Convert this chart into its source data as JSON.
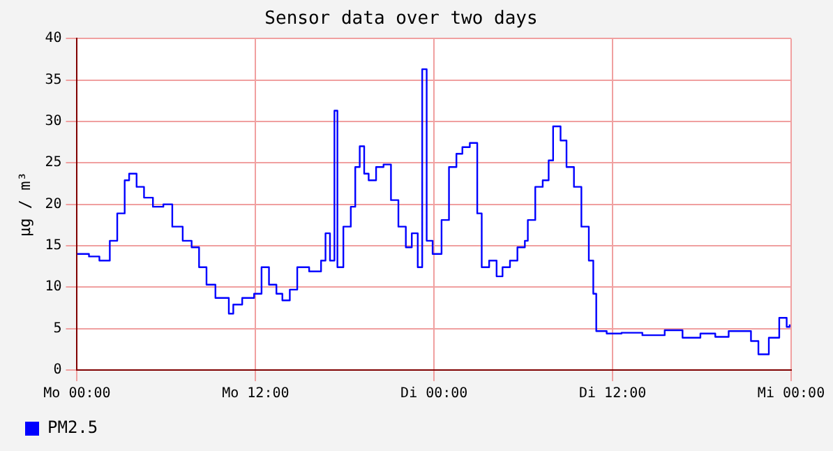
{
  "chart_data": {
    "type": "step",
    "title": "Sensor data over two days",
    "ylabel": "µg / m³",
    "xlim": [
      "--01-01T00:00",
      "--01-03T00:00"
    ],
    "xticks": [
      {
        "value": "--01-01T00:00",
        "label": "Mo 00:00"
      },
      {
        "value": "--01-01T12:00",
        "label": "Mo 12:00"
      },
      {
        "value": "--01-02T00:00",
        "label": "Di 00:00"
      },
      {
        "value": "--01-02T12:00",
        "label": "Di 12:00"
      },
      {
        "value": "--01-03T00:00",
        "label": "Mi 00:00"
      }
    ],
    "ylim": [
      0,
      40
    ],
    "yticks": [
      0,
      5,
      10,
      15,
      20,
      25,
      30,
      35,
      40
    ],
    "grid": true,
    "legend": "bottom left",
    "marker": "none",
    "line_style": "solid",
    "series": [
      {
        "name": "PM2.5",
        "color": "#0000ff",
        "x": [
          "--01-01T00:00",
          "--01-01T00:48",
          "--01-01T01:30",
          "--01-01T02:12",
          "--01-01T02:42",
          "--01-01T03:12",
          "--01-01T03:30",
          "--01-01T04:00",
          "--01-01T04:30",
          "--01-01T05:06",
          "--01-01T05:48",
          "--01-01T06:24",
          "--01-01T07:06",
          "--01-01T07:42",
          "--01-01T08:12",
          "--01-01T08:42",
          "--01-01T09:18",
          "--01-01T10:12",
          "--01-01T10:30",
          "--01-01T11:06",
          "--01-01T11:54",
          "--01-01T12:24",
          "--01-01T12:54",
          "--01-01T13:24",
          "--01-01T13:48",
          "--01-01T14:18",
          "--01-01T14:48",
          "--01-01T15:36",
          "--01-01T16:24",
          "--01-01T16:42",
          "--01-01T17:00",
          "--01-01T17:18",
          "--01-01T17:30",
          "--01-01T17:54",
          "--01-01T18:24",
          "--01-01T18:42",
          "--01-01T19:00",
          "--01-01T19:18",
          "--01-01T19:36",
          "--01-01T20:06",
          "--01-01T20:36",
          "--01-01T21:06",
          "--01-01T21:36",
          "--01-01T22:06",
          "--01-01T22:30",
          "--01-01T22:54",
          "--01-01T23:12",
          "--01-01T23:30",
          "--01-01T23:54",
          "--01-02T00:30",
          "--01-02T01:00",
          "--01-02T01:30",
          "--01-02T01:54",
          "--01-02T02:24",
          "--01-02T02:54",
          "--01-02T03:12",
          "--01-02T03:42",
          "--01-02T04:12",
          "--01-02T04:36",
          "--01-02T05:06",
          "--01-02T05:36",
          "--01-02T06:06",
          "--01-02T06:18",
          "--01-02T06:48",
          "--01-02T07:18",
          "--01-02T07:42",
          "--01-02T08:00",
          "--01-02T08:30",
          "--01-02T08:54",
          "--01-02T09:24",
          "--01-02T09:54",
          "--01-02T10:24",
          "--01-02T10:42",
          "--01-02T10:54",
          "--01-02T11:36",
          "--01-02T12:36",
          "--01-02T14:00",
          "--01-02T15:30",
          "--01-02T16:42",
          "--01-02T17:54",
          "--01-02T18:54",
          "--01-02T19:48",
          "--01-02T21:18",
          "--01-02T21:48",
          "--01-02T22:30",
          "--01-02T23:12",
          "--01-02T23:42",
          "--01-02T23:54"
        ],
        "values": [
          14,
          13.7,
          13.2,
          15.6,
          18.9,
          22.9,
          23.7,
          22.1,
          20.8,
          19.7,
          20,
          17.3,
          15.6,
          14.8,
          12.4,
          10.3,
          8.7,
          6.8,
          7.9,
          8.7,
          9.2,
          12.4,
          10.3,
          9.2,
          8.4,
          9.7,
          12.4,
          11.9,
          13.2,
          16.5,
          13.2,
          31.3,
          12.4,
          17.3,
          19.7,
          24.5,
          27,
          23.7,
          22.9,
          24.5,
          24.8,
          20.5,
          17.3,
          14.8,
          16.5,
          12.4,
          36.3,
          15.6,
          14,
          18.1,
          24.5,
          26.1,
          26.9,
          27.4,
          18.9,
          12.4,
          13.2,
          11.3,
          12.4,
          13.2,
          14.8,
          15.6,
          18.1,
          22.1,
          22.9,
          25.3,
          29.4,
          27.7,
          24.5,
          22.1,
          17.3,
          13.2,
          9.2,
          4.7,
          4.4,
          4.5,
          4.2,
          4.8,
          3.9,
          4.4,
          4,
          4.7,
          3.5,
          1.9,
          3.9,
          6.3,
          5.2,
          5.5
        ]
      }
    ]
  }
}
